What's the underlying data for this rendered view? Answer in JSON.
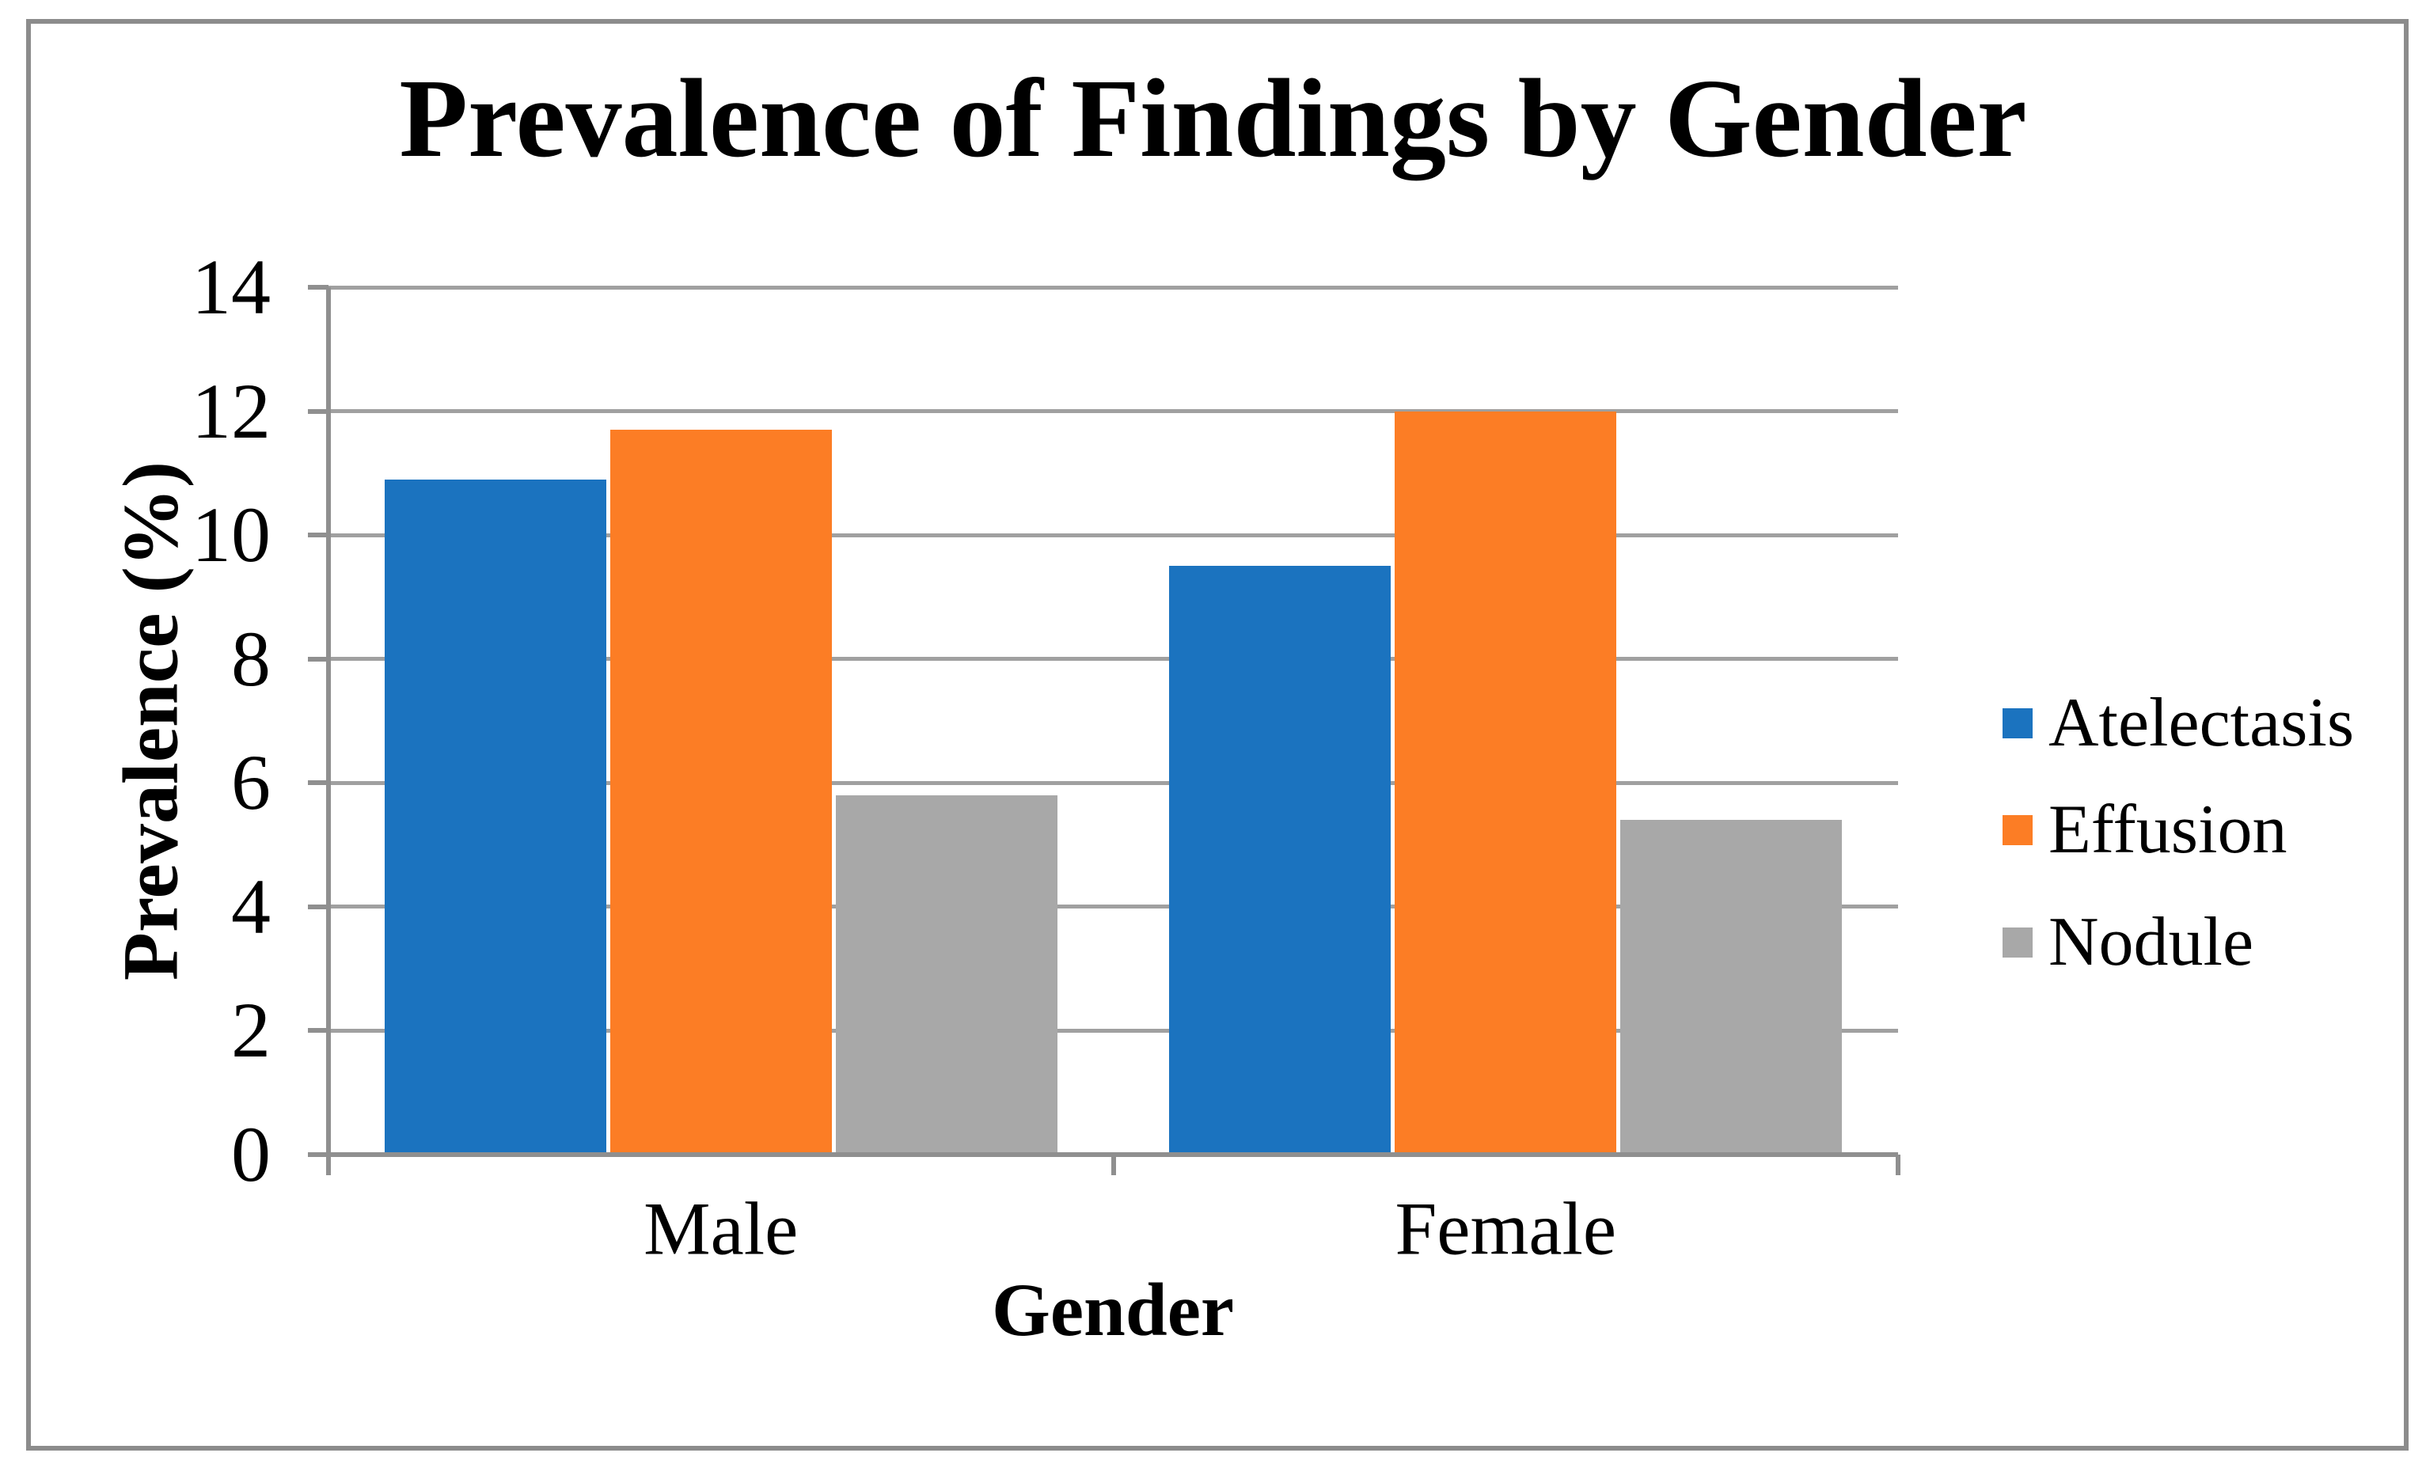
{
  "chart_data": {
    "type": "bar",
    "title": "Prevalence of Findings by Gender",
    "xlabel": "Gender",
    "ylabel": "Prevalence (%)",
    "categories": [
      "Male",
      "Female"
    ],
    "series": [
      {
        "name": "Atelectasis",
        "color": "#1B73BF",
        "values": [
          10.9,
          9.5
        ]
      },
      {
        "name": "Effusion",
        "color": "#FC7D25",
        "values": [
          11.7,
          12.0
        ]
      },
      {
        "name": "Nodule",
        "color": "#A8A8A8",
        "values": [
          5.8,
          5.4
        ]
      }
    ],
    "y_ticks": [
      0,
      2,
      4,
      6,
      8,
      10,
      12,
      14
    ],
    "ylim": [
      0,
      14
    ],
    "grid": "horizontal",
    "legend_position": "right",
    "axis_color": "#8F8F8F",
    "gridline_color": "#A0A0A0",
    "frame_border_color": "#8C8C8C"
  }
}
